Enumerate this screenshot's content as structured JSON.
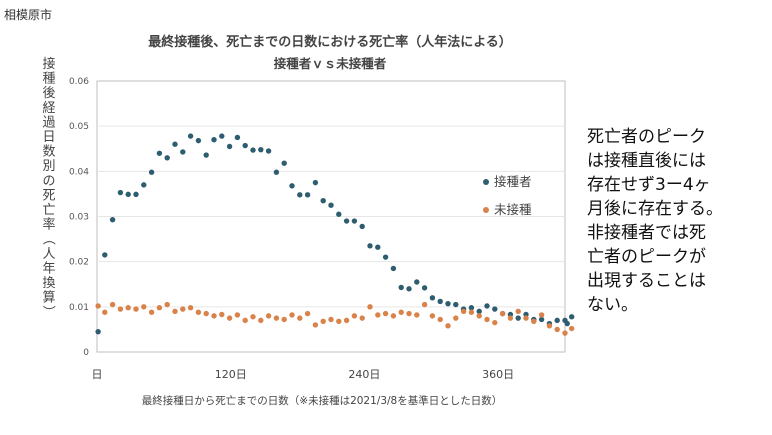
{
  "corner_label": "相模原市",
  "side_note": {
    "lines": [
      "死亡者のピーク",
      "は接種直後には",
      "存在せず3ー4ヶ",
      "月後に存在する。",
      "非接種者では死",
      "亡者のピークが",
      "出現することは",
      "ない。"
    ]
  },
  "colors": {
    "vaccinated": "#2e5d70",
    "unvaccinated": "#d9824a",
    "plot_border": "#bfbfbf",
    "gridline": "#e6e6e6"
  },
  "chart_data": {
    "type": "scatter",
    "title": "最終接種後、死亡までの日数における死亡率（人年法による）",
    "subtitle": "接種者ｖｓ未接種者",
    "ylabel": "接種後経過日数別の死亡率（人年換算）",
    "xlabel": "最終接種日から死亡までの日数（※未接種は2021/3/8を基準日とした日数）",
    "xlim": [
      0,
      420
    ],
    "ylim": [
      0,
      0.06
    ],
    "yticks": [
      "0",
      "0.01",
      "0.02",
      "0.03",
      "0.04",
      "0.05",
      "0.06"
    ],
    "xticks": [
      {
        "value": 0,
        "label": "日"
      },
      {
        "value": 120,
        "label": "120日"
      },
      {
        "value": 240,
        "label": "240日"
      },
      {
        "value": 360,
        "label": "360日"
      }
    ],
    "legend_position": "right",
    "series": [
      {
        "name": "接種者",
        "color_key": "vaccinated",
        "points": [
          [
            1,
            0.0045
          ],
          [
            7,
            0.0215
          ],
          [
            14,
            0.0293
          ],
          [
            21,
            0.0353
          ],
          [
            28,
            0.0349
          ],
          [
            35,
            0.0349
          ],
          [
            42,
            0.037
          ],
          [
            49,
            0.0398
          ],
          [
            56,
            0.044
          ],
          [
            63,
            0.043
          ],
          [
            70,
            0.046
          ],
          [
            77,
            0.0443
          ],
          [
            84,
            0.0478
          ],
          [
            91,
            0.0468
          ],
          [
            98,
            0.0436
          ],
          [
            105,
            0.047
          ],
          [
            112,
            0.0478
          ],
          [
            119,
            0.0455
          ],
          [
            126,
            0.0475
          ],
          [
            133,
            0.0457
          ],
          [
            140,
            0.0447
          ],
          [
            147,
            0.0448
          ],
          [
            154,
            0.0445
          ],
          [
            161,
            0.0398
          ],
          [
            168,
            0.0418
          ],
          [
            175,
            0.0368
          ],
          [
            182,
            0.0348
          ],
          [
            189,
            0.0348
          ],
          [
            196,
            0.0375
          ],
          [
            203,
            0.0335
          ],
          [
            210,
            0.0325
          ],
          [
            217,
            0.0305
          ],
          [
            224,
            0.029
          ],
          [
            231,
            0.029
          ],
          [
            238,
            0.0278
          ],
          [
            245,
            0.0235
          ],
          [
            252,
            0.0232
          ],
          [
            259,
            0.021
          ],
          [
            266,
            0.0185
          ],
          [
            273,
            0.0143
          ],
          [
            280,
            0.014
          ],
          [
            287,
            0.0155
          ],
          [
            294,
            0.0142
          ],
          [
            301,
            0.012
          ],
          [
            308,
            0.0112
          ],
          [
            315,
            0.0107
          ],
          [
            322,
            0.0105
          ],
          [
            329,
            0.0095
          ],
          [
            336,
            0.0098
          ],
          [
            343,
            0.009
          ],
          [
            350,
            0.0102
          ],
          [
            357,
            0.0095
          ],
          [
            364,
            0.0085
          ],
          [
            371,
            0.0083
          ],
          [
            378,
            0.0075
          ],
          [
            385,
            0.0083
          ],
          [
            392,
            0.0072
          ],
          [
            399,
            0.0072
          ],
          [
            406,
            0.0063
          ],
          [
            413,
            0.007
          ],
          [
            420,
            0.007
          ],
          [
            422,
            0.0063
          ],
          [
            426,
            0.0078
          ]
        ]
      },
      {
        "name": "未接種",
        "color_key": "unvaccinated",
        "points": [
          [
            1,
            0.0102
          ],
          [
            7,
            0.0088
          ],
          [
            14,
            0.0105
          ],
          [
            21,
            0.0095
          ],
          [
            28,
            0.0098
          ],
          [
            35,
            0.0095
          ],
          [
            42,
            0.01
          ],
          [
            49,
            0.0088
          ],
          [
            56,
            0.0098
          ],
          [
            63,
            0.0105
          ],
          [
            70,
            0.009
          ],
          [
            77,
            0.0095
          ],
          [
            84,
            0.0098
          ],
          [
            91,
            0.0088
          ],
          [
            98,
            0.0085
          ],
          [
            105,
            0.008
          ],
          [
            112,
            0.0083
          ],
          [
            119,
            0.0075
          ],
          [
            126,
            0.0082
          ],
          [
            133,
            0.007
          ],
          [
            140,
            0.0078
          ],
          [
            147,
            0.007
          ],
          [
            154,
            0.008
          ],
          [
            161,
            0.0075
          ],
          [
            168,
            0.0072
          ],
          [
            175,
            0.0082
          ],
          [
            182,
            0.0075
          ],
          [
            189,
            0.0085
          ],
          [
            196,
            0.006
          ],
          [
            203,
            0.0068
          ],
          [
            210,
            0.0072
          ],
          [
            217,
            0.0068
          ],
          [
            224,
            0.007
          ],
          [
            231,
            0.008
          ],
          [
            238,
            0.0075
          ],
          [
            245,
            0.01
          ],
          [
            252,
            0.0082
          ],
          [
            259,
            0.0085
          ],
          [
            266,
            0.008
          ],
          [
            273,
            0.0088
          ],
          [
            280,
            0.0085
          ],
          [
            287,
            0.0082
          ],
          [
            294,
            0.0105
          ],
          [
            301,
            0.008
          ],
          [
            308,
            0.0072
          ],
          [
            315,
            0.0058
          ],
          [
            322,
            0.0075
          ],
          [
            329,
            0.009
          ],
          [
            336,
            0.0088
          ],
          [
            343,
            0.008
          ],
          [
            350,
            0.0072
          ],
          [
            357,
            0.0065
          ],
          [
            364,
            0.0085
          ],
          [
            371,
            0.0075
          ],
          [
            378,
            0.009
          ],
          [
            385,
            0.0075
          ],
          [
            392,
            0.0068
          ],
          [
            399,
            0.0082
          ],
          [
            406,
            0.0058
          ],
          [
            413,
            0.005
          ],
          [
            420,
            0.0042
          ],
          [
            426,
            0.0052
          ]
        ]
      }
    ]
  }
}
